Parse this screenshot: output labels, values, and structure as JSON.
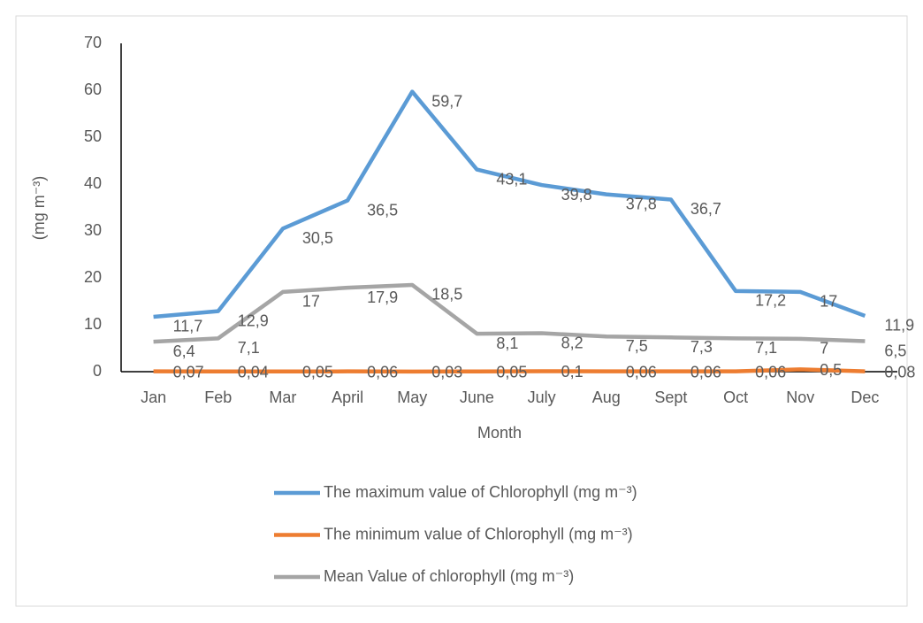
{
  "chart_data": {
    "type": "line",
    "y_axis_label": "(mg m⁻³)",
    "x_axis_label": "Month",
    "categories": [
      "Jan",
      "Feb",
      "Mar",
      "April",
      "May",
      "June",
      "July",
      "Aug",
      "Sept",
      "Oct",
      "Nov",
      "Dec"
    ],
    "series": [
      {
        "name": "The maximum value of Chlorophyll (mg m⁻³)",
        "color": "#5b9bd5",
        "values": [
          11.7,
          12.9,
          30.5,
          36.5,
          59.7,
          43.1,
          39.8,
          37.8,
          36.7,
          17.2,
          17,
          11.9
        ],
        "value_labels": [
          "11,7",
          "12,9",
          "30,5",
          "36,5",
          "59,7",
          "43,1",
          "39,8",
          "37,8",
          "36,7",
          "17,2",
          "17",
          "11,9"
        ]
      },
      {
        "name": "The minimum value of Chlorophyll (mg m⁻³)",
        "color": "#ed7d31",
        "values": [
          0.07,
          0.04,
          0.05,
          0.06,
          0.03,
          0.05,
          0.1,
          0.06,
          0.06,
          0.06,
          0.5,
          0.08
        ],
        "value_labels": [
          "0,07",
          "0,04",
          "0,05",
          "0,06",
          "0,03",
          "0,05",
          "0,1",
          "0,06",
          "0,06",
          "0,06",
          "0,5",
          "0,08"
        ]
      },
      {
        "name": "Mean Value of chlorophyll (mg m⁻³)",
        "color": "#a5a5a5",
        "values": [
          6.4,
          7.1,
          17,
          17.9,
          18.5,
          8.1,
          8.2,
          7.5,
          7.3,
          7.1,
          7,
          6.5
        ],
        "value_labels": [
          "6,4",
          "7,1",
          "17",
          "17,9",
          "18,5",
          "8,1",
          "8,2",
          "7,5",
          "7,3",
          "7,1",
          "7",
          "6,5"
        ]
      }
    ],
    "ylim": [
      0,
      70
    ],
    "yticks": [
      0,
      10,
      20,
      30,
      40,
      50,
      60,
      70
    ],
    "grid": false,
    "legend_position": "bottom"
  }
}
